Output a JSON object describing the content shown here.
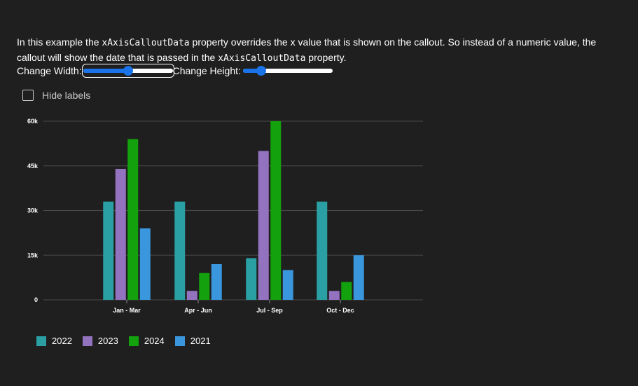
{
  "description": {
    "part1": "In this example the ",
    "code1": "xAxisCalloutData",
    "part2": " property overrides the x value that is shown on the callout. So instead of a numeric value, the callout will show the date that is passed in the ",
    "code2": "xAxisCalloutData",
    "part3": " property."
  },
  "controls": {
    "width_label": "Change Width:",
    "width_value": 0.5,
    "height_label": "Change Height:",
    "height_value": 0.2
  },
  "checkbox": {
    "label": "Hide labels",
    "checked": false
  },
  "chart_data": {
    "type": "bar",
    "categories": [
      "Jan - Mar",
      "Apr - Jun",
      "Jul - Sep",
      "Oct - Dec"
    ],
    "series": [
      {
        "name": "2022",
        "color": "#2aa0a4",
        "values": [
          33000,
          33000,
          14000,
          33000
        ]
      },
      {
        "name": "2023",
        "color": "#9373c0",
        "values": [
          44000,
          3000,
          50000,
          3000
        ]
      },
      {
        "name": "2024",
        "color": "#13a10e",
        "values": [
          54000,
          9000,
          60000,
          6000
        ]
      },
      {
        "name": "2021",
        "color": "#3a96dd",
        "values": [
          24000,
          12000,
          10000,
          15000
        ]
      }
    ],
    "ylim": [
      0,
      60000
    ],
    "yticks": [
      0,
      15000,
      30000,
      45000,
      60000
    ],
    "ytick_labels": [
      "0",
      "15k",
      "30k",
      "45k",
      "60k"
    ],
    "grid": true,
    "legend_position": "bottom-left"
  }
}
